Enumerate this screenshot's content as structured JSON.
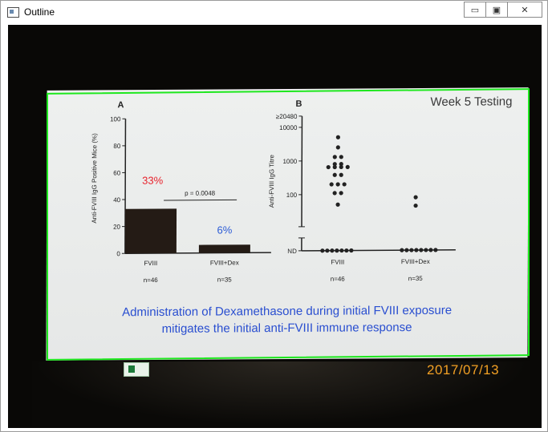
{
  "window": {
    "title": "Outline",
    "minimize_label": "▭",
    "maximize_label": "▣",
    "close_label": "✕"
  },
  "slide": {
    "header": "Week 5 Testing",
    "caption_line1": "Administration of Dexamethasone during initial FVIII exposure",
    "caption_line2": "mitigates the initial anti-FVIII immune response"
  },
  "timestamp": "2017/07/13",
  "colors": {
    "outline": "#1ee81e",
    "bar": "#241b15",
    "label_red": "#e8202a",
    "label_blue": "#2b5bd6",
    "caption_blue": "#2a4fd0",
    "timestamp": "#f2a024"
  },
  "chart_data": [
    {
      "type": "bar",
      "panel_label": "A",
      "categories": [
        "FVIII",
        "FVIII+Dex"
      ],
      "values": [
        33,
        6
      ],
      "value_labels": [
        "33%",
        "6%"
      ],
      "n_labels": [
        "n=46",
        "n=35"
      ],
      "ylabel": "Anti-FVIII IgG Positive Mice (%)",
      "ylim": [
        0,
        100
      ],
      "yticks": [
        0,
        20,
        40,
        60,
        80,
        100
      ],
      "annotation": "p = 0.0048"
    },
    {
      "type": "scatter",
      "panel_label": "B",
      "categories": [
        "FVIII",
        "FVIII+Dex"
      ],
      "ylabel": "Anti-FVIII IgG Titre",
      "ytick_labels": [
        "≥20480",
        "10000",
        "1000",
        "100",
        "ND"
      ],
      "n_labels": [
        "n=46",
        "n=35"
      ],
      "scale": "log",
      "series": [
        {
          "category": "FVIII",
          "titres": [
            5000,
            2500,
            1300,
            1300,
            800,
            800,
            650,
            650,
            650,
            650,
            380,
            380,
            200,
            200,
            200,
            110,
            110,
            50
          ]
        },
        {
          "category": "FVIII+Dex",
          "titres": [
            80,
            45
          ]
        }
      ]
    }
  ]
}
